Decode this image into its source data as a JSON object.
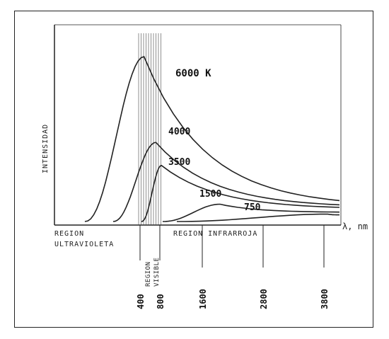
{
  "chart_data": {
    "type": "line",
    "ylabel": "INTENSIDAD",
    "xlabel": "λ, nm",
    "x_ticks": [
      400,
      800,
      1600,
      2800,
      3800
    ],
    "x_tick_labels": [
      "400",
      "800",
      "1600",
      "2800",
      "3800"
    ],
    "regions": {
      "ultraviolet": [
        "REGION",
        "ULTRAVIOLETA"
      ],
      "visible": [
        "REGION",
        "VISIBLE"
      ],
      "infrared": "REGION  INFRARROJA"
    },
    "series": [
      {
        "name": "6000 K",
        "peak_x": 480,
        "peak_y": 1.0
      },
      {
        "name": "4000",
        "peak_x": 720,
        "peak_y": 0.48
      },
      {
        "name": "3500",
        "peak_x": 830,
        "peak_y": 0.34
      },
      {
        "name": "1500",
        "peak_x": 1950,
        "peak_y": 0.105
      },
      {
        "name": "750",
        "peak_x": 3900,
        "peak_y": 0.045
      }
    ],
    "grid": false
  }
}
